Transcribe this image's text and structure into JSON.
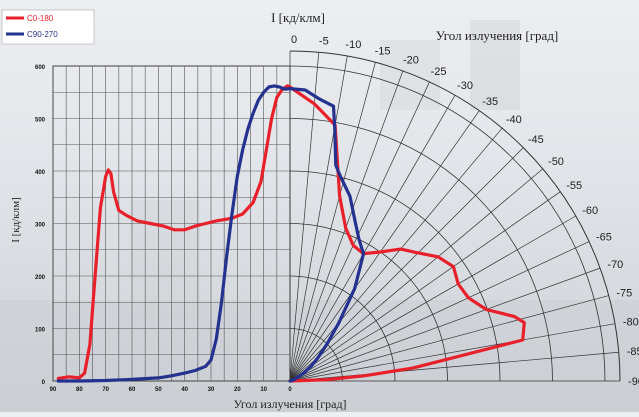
{
  "chart_data": {
    "type": "line",
    "top_label": "I   [кд/клм]",
    "right_label": "Угол излучения     [град]",
    "xlabel": "Угол излучения     [град]",
    "ylabel": "I   [кд/клм]",
    "ylim": [
      0,
      600
    ],
    "xlim": [
      90,
      0
    ],
    "y_ticks": [
      "0",
      "100",
      "200",
      "300",
      "400",
      "500",
      "600"
    ],
    "x_ticks": [
      "90",
      "80",
      "70",
      "60",
      "50",
      "40",
      "30",
      "20",
      "10",
      "0"
    ],
    "angle_ticks": [
      "0",
      "-5",
      "-10",
      "-15",
      "-20",
      "-25",
      "-30",
      "-35",
      "-40",
      "-45",
      "-50",
      "-55",
      "-60",
      "-65",
      "-70",
      "-75",
      "-80",
      "-85",
      "-90"
    ],
    "legend_position": "top-left",
    "series": [
      {
        "name": "C0-180",
        "color": "#e8202a",
        "cartesian": [
          [
            88,
            5
          ],
          [
            84,
            8
          ],
          [
            80,
            6
          ],
          [
            78,
            15
          ],
          [
            76,
            70
          ],
          [
            74,
            200
          ],
          [
            72,
            330
          ],
          [
            70,
            390
          ],
          [
            69,
            402
          ],
          [
            68,
            395
          ],
          [
            67,
            360
          ],
          [
            65,
            325
          ],
          [
            62,
            315
          ],
          [
            58,
            305
          ],
          [
            53,
            300
          ],
          [
            48,
            295
          ],
          [
            44,
            288
          ],
          [
            40,
            288
          ],
          [
            36,
            295
          ],
          [
            32,
            300
          ],
          [
            28,
            305
          ],
          [
            22,
            310
          ],
          [
            18,
            318
          ],
          [
            14,
            340
          ],
          [
            11,
            380
          ],
          [
            9,
            440
          ],
          [
            7,
            500
          ],
          [
            5,
            540
          ],
          [
            3,
            555
          ],
          [
            1,
            562
          ],
          [
            0,
            560
          ]
        ],
        "polar": [
          [
            0,
            560
          ],
          [
            -5,
            530
          ],
          [
            -10,
            495
          ],
          [
            -15,
            365
          ],
          [
            -20,
            310
          ],
          [
            -25,
            285
          ],
          [
            -30,
            280
          ],
          [
            -35,
            300
          ],
          [
            -40,
            328
          ],
          [
            -45,
            345
          ],
          [
            -50,
            368
          ],
          [
            -55,
            380
          ],
          [
            -60,
            370
          ],
          [
            -65,
            375
          ],
          [
            -70,
            398
          ],
          [
            -74,
            445
          ],
          [
            -76,
            460
          ],
          [
            -80,
            450
          ],
          [
            -84,
            235
          ],
          [
            -86,
            140
          ],
          [
            -88,
            70
          ],
          [
            -90,
            0
          ]
        ]
      },
      {
        "name": "C90-270",
        "color": "#24318f",
        "cartesian": [
          [
            88,
            0
          ],
          [
            84,
            0
          ],
          [
            80,
            0
          ],
          [
            70,
            1
          ],
          [
            60,
            3
          ],
          [
            50,
            6
          ],
          [
            45,
            10
          ],
          [
            40,
            15
          ],
          [
            36,
            20
          ],
          [
            32,
            28
          ],
          [
            30,
            40
          ],
          [
            28,
            80
          ],
          [
            26,
            150
          ],
          [
            24,
            240
          ],
          [
            22,
            320
          ],
          [
            20,
            390
          ],
          [
            18,
            440
          ],
          [
            16,
            480
          ],
          [
            14,
            510
          ],
          [
            12,
            535
          ],
          [
            10,
            550
          ],
          [
            8,
            560
          ],
          [
            6,
            562
          ],
          [
            4,
            560
          ],
          [
            2,
            556
          ],
          [
            0,
            557
          ]
        ],
        "polar": [
          [
            0,
            557
          ],
          [
            -3,
            555
          ],
          [
            -6,
            540
          ],
          [
            -9,
            530
          ],
          [
            -10,
            490
          ],
          [
            -12,
            420
          ],
          [
            -14,
            400
          ],
          [
            -18,
            370
          ],
          [
            -22,
            330
          ],
          [
            -26,
            300
          ],
          [
            -30,
            280
          ],
          [
            -35,
            215
          ],
          [
            -40,
            145
          ],
          [
            -45,
            100
          ],
          [
            -50,
            70
          ],
          [
            -55,
            50
          ],
          [
            -60,
            30
          ],
          [
            -70,
            10
          ],
          [
            -80,
            3
          ],
          [
            -90,
            0
          ]
        ]
      }
    ]
  }
}
